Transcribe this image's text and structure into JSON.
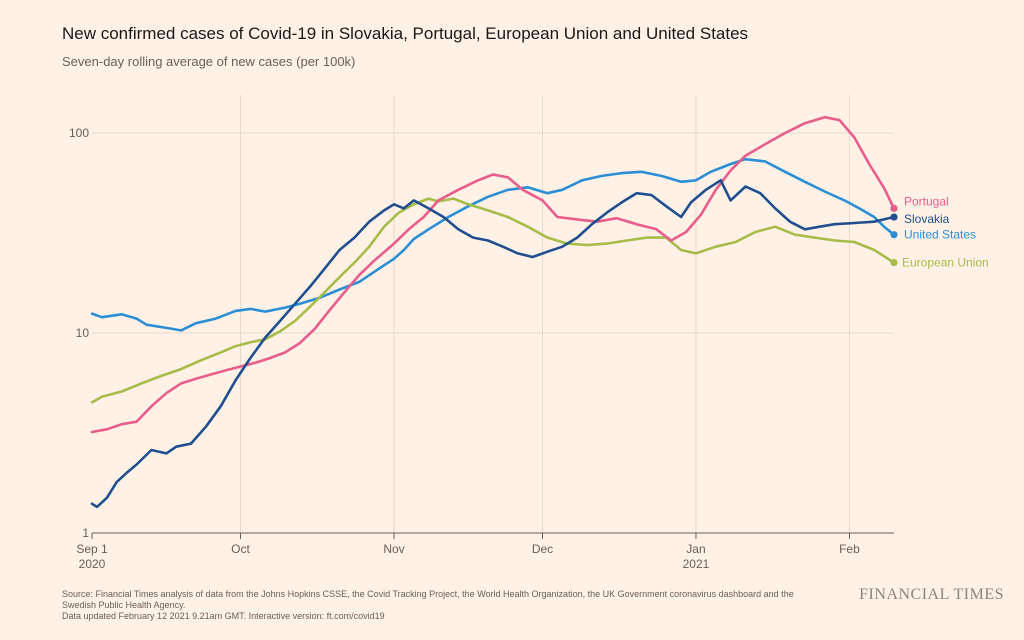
{
  "header": {
    "title": "New confirmed cases of Covid-19 in Slovakia, Portugal, European Union and United States",
    "subtitle": "Seven-day rolling average of new cases (per 100k)"
  },
  "footer": {
    "source_line1": "Source: Financial Times analysis of data from the Johns Hopkins CSSE, the Covid Tracking Project, the World Health Organization, the UK Government coronavirus dashboard and the",
    "source_line2": "Swedish Public Health Agency.",
    "source_line3": "Data updated February 12 2021 9.21am GMT. Interactive version: ft.com/covid19",
    "logo": "FINANCIAL TIMES"
  },
  "chart_data": {
    "type": "line",
    "title": "New confirmed cases of Covid-19 in Slovakia, Portugal, European Union and United States",
    "subtitle": "Seven-day rolling average of new cases (per 100k)",
    "y_scale": "log",
    "ylim": [
      1,
      150
    ],
    "y_ticks": [
      {
        "value": 1,
        "label": "1"
      },
      {
        "value": 10,
        "label": "10"
      },
      {
        "value": 100,
        "label": "100"
      }
    ],
    "xlim": [
      "2020-09-01",
      "2021-02-10"
    ],
    "x_ticks": [
      {
        "date": "2020-09-01",
        "label": "Sep 1",
        "sublabel": "2020"
      },
      {
        "date": "2020-10-01",
        "label": "Oct",
        "sublabel": ""
      },
      {
        "date": "2020-11-01",
        "label": "Nov",
        "sublabel": ""
      },
      {
        "date": "2020-12-01",
        "label": "Dec",
        "sublabel": ""
      },
      {
        "date": "2021-01-01",
        "label": "Jan",
        "sublabel": "2021"
      },
      {
        "date": "2021-02-01",
        "label": "Feb",
        "sublabel": ""
      }
    ],
    "grid": true,
    "legend": "direct labels at line ends",
    "series": [
      {
        "name": "United States",
        "color": "#2A8FD4",
        "points": [
          [
            "2020-09-01",
            12.5
          ],
          [
            "2020-09-03",
            12.0
          ],
          [
            "2020-09-07",
            12.4
          ],
          [
            "2020-09-10",
            11.8
          ],
          [
            "2020-09-12",
            11.0
          ],
          [
            "2020-09-16",
            10.6
          ],
          [
            "2020-09-19",
            10.3
          ],
          [
            "2020-09-22",
            11.2
          ],
          [
            "2020-09-26",
            11.8
          ],
          [
            "2020-09-30",
            12.9
          ],
          [
            "2020-10-03",
            13.2
          ],
          [
            "2020-10-06",
            12.8
          ],
          [
            "2020-10-10",
            13.4
          ],
          [
            "2020-10-13",
            14.0
          ],
          [
            "2020-10-17",
            15.0
          ],
          [
            "2020-10-21",
            16.5
          ],
          [
            "2020-10-25",
            18.0
          ],
          [
            "2020-10-29",
            21.0
          ],
          [
            "2020-11-01",
            23.5
          ],
          [
            "2020-11-03",
            26.0
          ],
          [
            "2020-11-05",
            29.5
          ],
          [
            "2020-11-08",
            33.0
          ],
          [
            "2020-11-12",
            38.0
          ],
          [
            "2020-11-16",
            43.0
          ],
          [
            "2020-11-20",
            48.0
          ],
          [
            "2020-11-24",
            52.0
          ],
          [
            "2020-11-28",
            53.5
          ],
          [
            "2020-12-02",
            50.0
          ],
          [
            "2020-12-05",
            52.0
          ],
          [
            "2020-12-09",
            58.0
          ],
          [
            "2020-12-13",
            61.0
          ],
          [
            "2020-12-17",
            63.0
          ],
          [
            "2020-12-21",
            64.0
          ],
          [
            "2020-12-25",
            61.0
          ],
          [
            "2020-12-29",
            57.0
          ],
          [
            "2021-01-01",
            58.0
          ],
          [
            "2021-01-04",
            64.0
          ],
          [
            "2021-01-08",
            70.0
          ],
          [
            "2021-01-11",
            74.0
          ],
          [
            "2021-01-15",
            72.0
          ],
          [
            "2021-01-19",
            64.0
          ],
          [
            "2021-01-23",
            57.0
          ],
          [
            "2021-01-27",
            51.0
          ],
          [
            "2021-01-31",
            46.0
          ],
          [
            "2021-02-03",
            42.0
          ],
          [
            "2021-02-06",
            38.0
          ],
          [
            "2021-02-08",
            34.0
          ],
          [
            "2021-02-10",
            31.0
          ]
        ]
      },
      {
        "name": "European Union",
        "color": "#A6BC4B",
        "points": [
          [
            "2020-09-01",
            4.5
          ],
          [
            "2020-09-03",
            4.8
          ],
          [
            "2020-09-07",
            5.1
          ],
          [
            "2020-09-11",
            5.6
          ],
          [
            "2020-09-15",
            6.1
          ],
          [
            "2020-09-19",
            6.6
          ],
          [
            "2020-09-23",
            7.3
          ],
          [
            "2020-09-27",
            8.0
          ],
          [
            "2020-09-30",
            8.6
          ],
          [
            "2020-10-03",
            9.0
          ],
          [
            "2020-10-06",
            9.3
          ],
          [
            "2020-10-09",
            10.2
          ],
          [
            "2020-10-12",
            11.5
          ],
          [
            "2020-10-15",
            13.5
          ],
          [
            "2020-10-18",
            16.0
          ],
          [
            "2020-10-21",
            19.0
          ],
          [
            "2020-10-24",
            22.5
          ],
          [
            "2020-10-27",
            27.0
          ],
          [
            "2020-10-30",
            34.0
          ],
          [
            "2020-11-02",
            40.0
          ],
          [
            "2020-11-05",
            44.0
          ],
          [
            "2020-11-08",
            47.0
          ],
          [
            "2020-11-10",
            45.5
          ],
          [
            "2020-11-13",
            47.0
          ],
          [
            "2020-11-16",
            44.0
          ],
          [
            "2020-11-20",
            41.0
          ],
          [
            "2020-11-24",
            38.0
          ],
          [
            "2020-11-28",
            34.0
          ],
          [
            "2020-12-02",
            30.0
          ],
          [
            "2020-12-06",
            28.0
          ],
          [
            "2020-12-10",
            27.5
          ],
          [
            "2020-12-14",
            28.0
          ],
          [
            "2020-12-18",
            29.0
          ],
          [
            "2020-12-22",
            30.0
          ],
          [
            "2020-12-26",
            30.0
          ],
          [
            "2020-12-29",
            26.0
          ],
          [
            "2021-01-01",
            25.0
          ],
          [
            "2021-01-05",
            27.0
          ],
          [
            "2021-01-09",
            28.5
          ],
          [
            "2021-01-13",
            32.0
          ],
          [
            "2021-01-17",
            34.0
          ],
          [
            "2021-01-21",
            31.0
          ],
          [
            "2021-01-25",
            30.0
          ],
          [
            "2021-01-29",
            29.0
          ],
          [
            "2021-02-02",
            28.5
          ],
          [
            "2021-02-06",
            26.0
          ],
          [
            "2021-02-10",
            22.5
          ]
        ]
      },
      {
        "name": "Portugal",
        "color": "#E95D8C",
        "points": [
          [
            "2020-09-01",
            3.2
          ],
          [
            "2020-09-04",
            3.3
          ],
          [
            "2020-09-07",
            3.5
          ],
          [
            "2020-09-10",
            3.6
          ],
          [
            "2020-09-13",
            4.3
          ],
          [
            "2020-09-16",
            5.0
          ],
          [
            "2020-09-19",
            5.6
          ],
          [
            "2020-09-22",
            5.9
          ],
          [
            "2020-09-25",
            6.2
          ],
          [
            "2020-09-28",
            6.5
          ],
          [
            "2020-10-01",
            6.8
          ],
          [
            "2020-10-04",
            7.1
          ],
          [
            "2020-10-07",
            7.5
          ],
          [
            "2020-10-10",
            8.0
          ],
          [
            "2020-10-13",
            8.9
          ],
          [
            "2020-10-16",
            10.5
          ],
          [
            "2020-10-19",
            13.0
          ],
          [
            "2020-10-22",
            16.0
          ],
          [
            "2020-10-25",
            19.5
          ],
          [
            "2020-10-28",
            23.0
          ],
          [
            "2020-11-01",
            28.0
          ],
          [
            "2020-11-04",
            33.0
          ],
          [
            "2020-11-07",
            38.0
          ],
          [
            "2020-11-10",
            46.0
          ],
          [
            "2020-11-14",
            52.0
          ],
          [
            "2020-11-18",
            58.0
          ],
          [
            "2020-11-21",
            62.0
          ],
          [
            "2020-11-24",
            60.0
          ],
          [
            "2020-11-27",
            52.0
          ],
          [
            "2020-12-01",
            46.0
          ],
          [
            "2020-12-04",
            38.0
          ],
          [
            "2020-12-08",
            37.0
          ],
          [
            "2020-12-12",
            36.0
          ],
          [
            "2020-12-16",
            37.5
          ],
          [
            "2020-12-20",
            35.0
          ],
          [
            "2020-12-24",
            33.0
          ],
          [
            "2020-12-27",
            29.0
          ],
          [
            "2020-12-30",
            32.0
          ],
          [
            "2021-01-02",
            39.0
          ],
          [
            "2021-01-05",
            52.0
          ],
          [
            "2021-01-08",
            65.0
          ],
          [
            "2021-01-11",
            77.0
          ],
          [
            "2021-01-15",
            88.0
          ],
          [
            "2021-01-19",
            100.0
          ],
          [
            "2021-01-23",
            112.0
          ],
          [
            "2021-01-27",
            120.0
          ],
          [
            "2021-01-30",
            116.0
          ],
          [
            "2021-02-02",
            95.0
          ],
          [
            "2021-02-05",
            70.0
          ],
          [
            "2021-02-08",
            53.0
          ],
          [
            "2021-02-10",
            42.0
          ]
        ]
      },
      {
        "name": "Slovakia",
        "color": "#1F4F8F",
        "points": [
          [
            "2020-09-01",
            1.4
          ],
          [
            "2020-09-02",
            1.35
          ],
          [
            "2020-09-04",
            1.5
          ],
          [
            "2020-09-06",
            1.8
          ],
          [
            "2020-09-08",
            2.0
          ],
          [
            "2020-09-10",
            2.2
          ],
          [
            "2020-09-13",
            2.6
          ],
          [
            "2020-09-16",
            2.5
          ],
          [
            "2020-09-18",
            2.7
          ],
          [
            "2020-09-21",
            2.8
          ],
          [
            "2020-09-24",
            3.4
          ],
          [
            "2020-09-27",
            4.3
          ],
          [
            "2020-09-30",
            5.8
          ],
          [
            "2020-10-03",
            7.5
          ],
          [
            "2020-10-06",
            9.5
          ],
          [
            "2020-10-09",
            11.5
          ],
          [
            "2020-10-12",
            14.0
          ],
          [
            "2020-10-15",
            17.0
          ],
          [
            "2020-10-18",
            21.0
          ],
          [
            "2020-10-21",
            26.0
          ],
          [
            "2020-10-24",
            30.0
          ],
          [
            "2020-10-27",
            36.0
          ],
          [
            "2020-10-30",
            41.0
          ],
          [
            "2020-11-01",
            44.0
          ],
          [
            "2020-11-03",
            42.0
          ],
          [
            "2020-11-05",
            46.0
          ],
          [
            "2020-11-08",
            42.0
          ],
          [
            "2020-11-11",
            38.0
          ],
          [
            "2020-11-14",
            33.0
          ],
          [
            "2020-11-17",
            30.0
          ],
          [
            "2020-11-20",
            29.0
          ],
          [
            "2020-11-23",
            27.0
          ],
          [
            "2020-11-26",
            25.0
          ],
          [
            "2020-11-29",
            24.0
          ],
          [
            "2020-12-02",
            25.5
          ],
          [
            "2020-12-05",
            27.0
          ],
          [
            "2020-12-08",
            30.0
          ],
          [
            "2020-12-11",
            35.0
          ],
          [
            "2020-12-14",
            40.0
          ],
          [
            "2020-12-17",
            45.0
          ],
          [
            "2020-12-20",
            50.0
          ],
          [
            "2020-12-23",
            49.0
          ],
          [
            "2020-12-26",
            43.0
          ],
          [
            "2020-12-29",
            38.0
          ],
          [
            "2020-12-31",
            45.0
          ],
          [
            "2021-01-03",
            52.0
          ],
          [
            "2021-01-06",
            58.0
          ],
          [
            "2021-01-08",
            46.0
          ],
          [
            "2021-01-11",
            54.0
          ],
          [
            "2021-01-14",
            50.0
          ],
          [
            "2021-01-17",
            42.0
          ],
          [
            "2021-01-20",
            36.0
          ],
          [
            "2021-01-23",
            33.0
          ],
          [
            "2021-01-26",
            34.0
          ],
          [
            "2021-01-29",
            35.0
          ],
          [
            "2021-02-02",
            35.5
          ],
          [
            "2021-02-06",
            36.0
          ],
          [
            "2021-02-10",
            38.0
          ]
        ]
      }
    ]
  }
}
